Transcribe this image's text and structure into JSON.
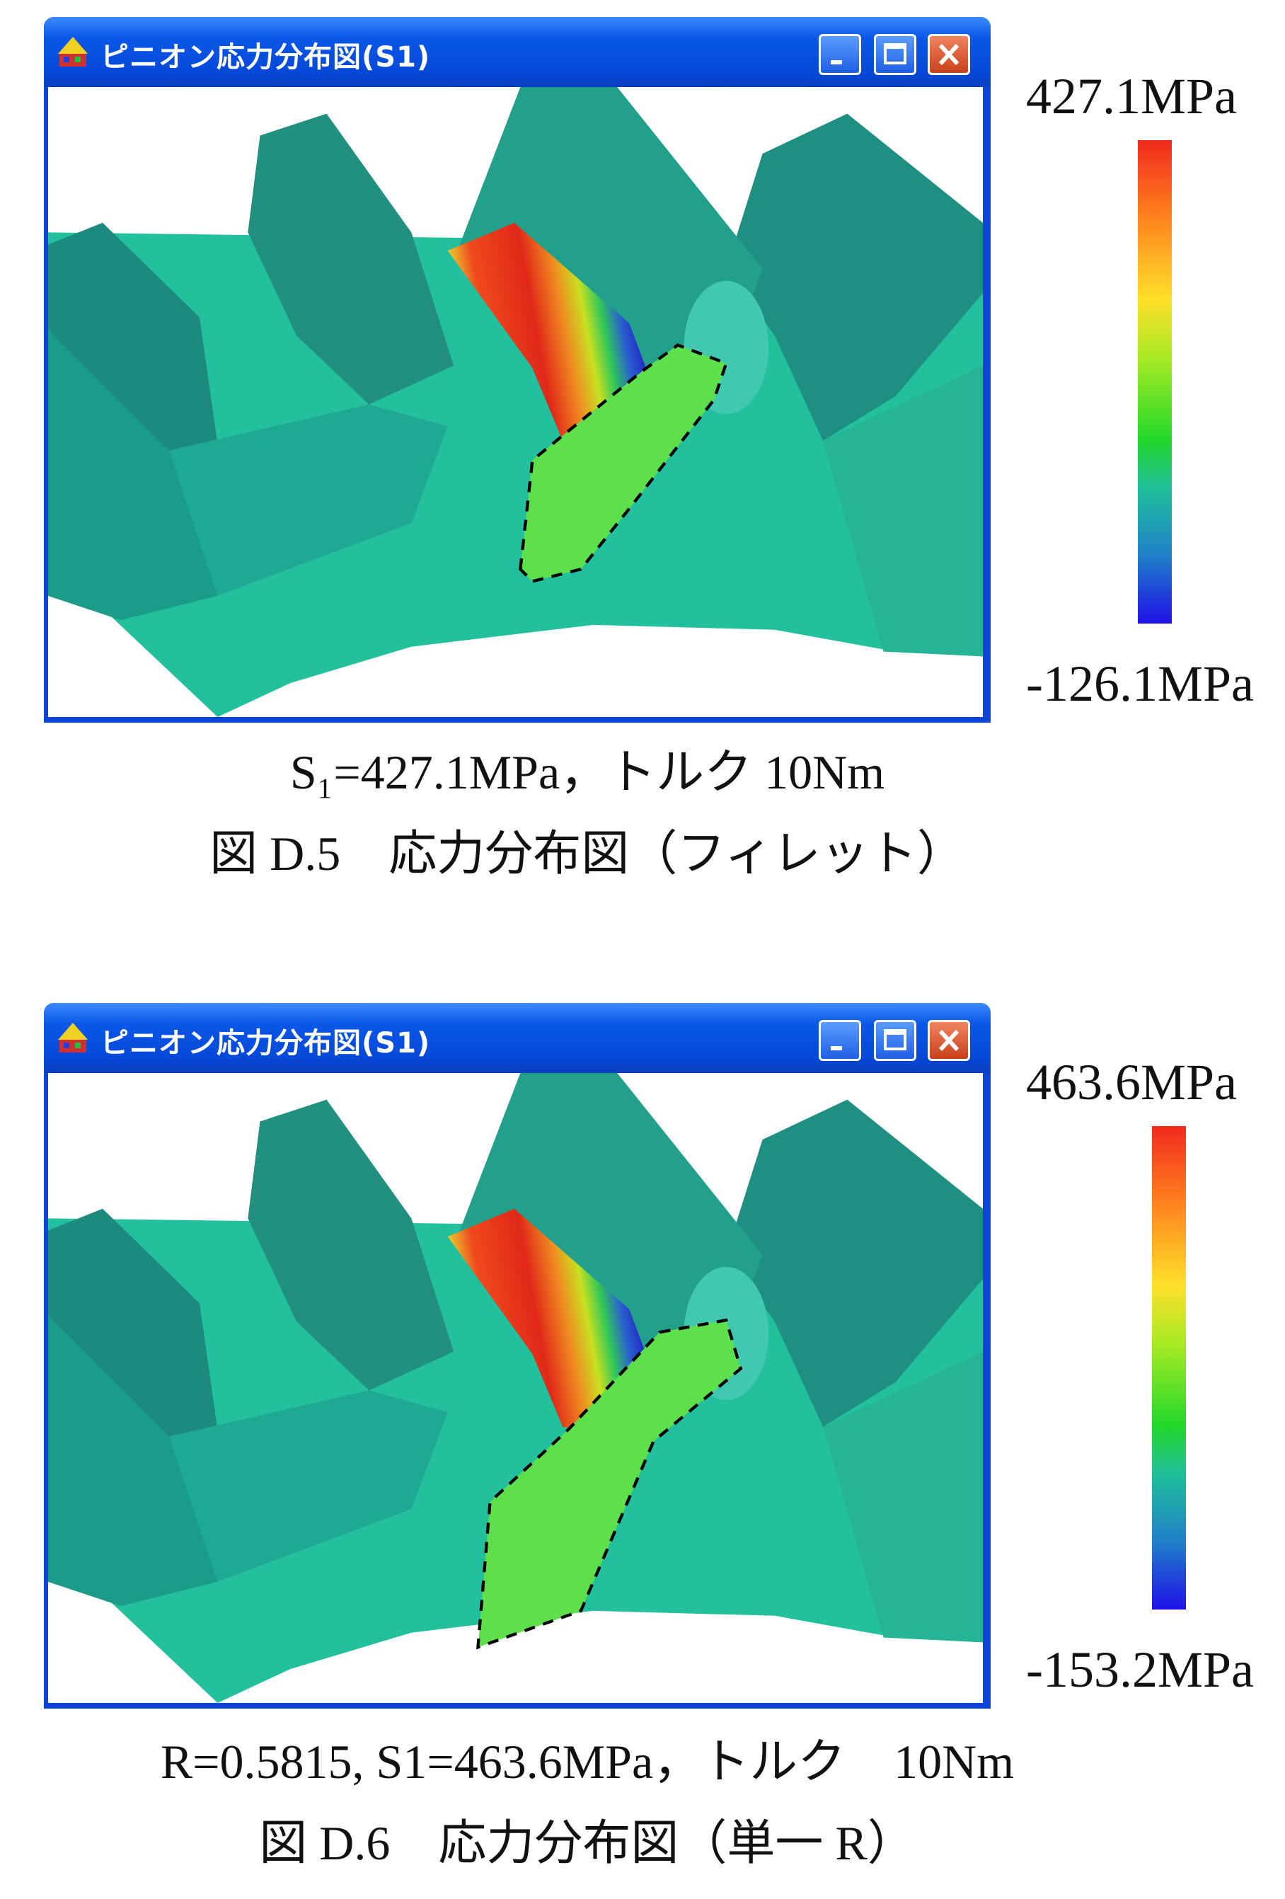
{
  "figures": [
    {
      "window": {
        "title": "ピニオン応力分布図(S1)"
      },
      "scale": {
        "max": "427.1MPa",
        "min": "-126.1MPa"
      },
      "caption": "S₁=427.1MPa，トルク 10Nm",
      "label": "図 D.5　応力分布図（フィレット）"
    },
    {
      "window": {
        "title": "ピニオン応力分布図(S1)"
      },
      "scale": {
        "max": "463.6MPa",
        "min": "-153.2MPa"
      },
      "caption": "R=0.5815, S1=463.6MPa，トルク　10Nm",
      "label": "図 D.6　応力分布図（単一 R）"
    }
  ]
}
